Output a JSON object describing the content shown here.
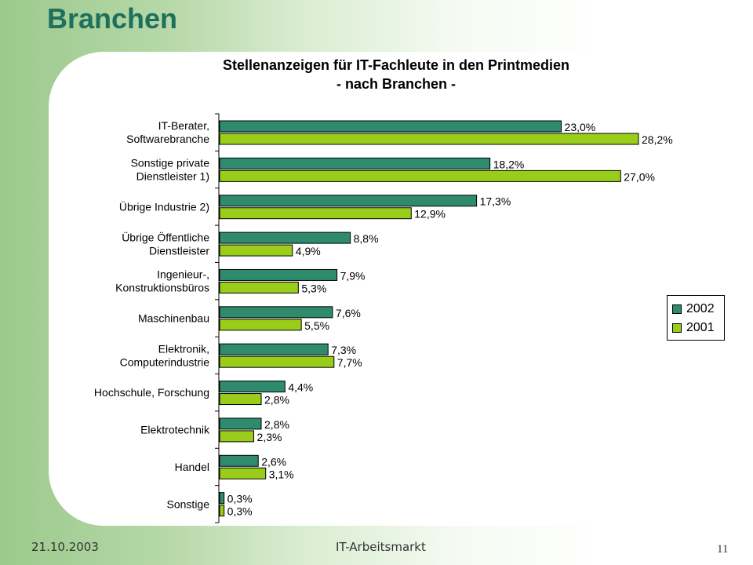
{
  "slide": {
    "title": "Branchen",
    "footer_date": "21.10.2003",
    "footer_center": "IT-Arbeitsmarkt",
    "page_number": "11"
  },
  "colors": {
    "series_2002": "#2e8b6e",
    "series_2001": "#9acd1a",
    "slide_title": "#1e6f5c"
  },
  "chart_data": {
    "type": "bar",
    "orientation": "horizontal",
    "title_lines": [
      "Stellenanzeigen für IT-Fachleute in den Printmedien",
      "- nach Branchen -"
    ],
    "categories": [
      [
        "IT-Berater,",
        "Softwarebranche"
      ],
      [
        "Sonstige private",
        "Dienstleister 1)"
      ],
      [
        "Übrige Industrie 2)"
      ],
      [
        "Übrige Öffentliche",
        "Dienstleister"
      ],
      [
        "Ingenieur-,",
        "Konstruktionsbüros"
      ],
      [
        "Maschinenbau"
      ],
      [
        "Elektronik,",
        "Computerindustrie"
      ],
      [
        "Hochschule, Forschung"
      ],
      [
        "Elektrotechnik"
      ],
      [
        "Handel"
      ],
      [
        "Sonstige"
      ]
    ],
    "series": [
      {
        "name": "2002",
        "values": [
          23.0,
          18.2,
          17.3,
          8.8,
          7.9,
          7.6,
          7.3,
          4.4,
          2.8,
          2.6,
          0.3
        ],
        "labels": [
          "23,0%",
          "18,2%",
          "17,3%",
          "8,8%",
          "7,9%",
          "7,6%",
          "7,3%",
          "4,4%",
          "2,8%",
          "2,6%",
          "0,3%"
        ]
      },
      {
        "name": "2001",
        "values": [
          28.2,
          27.0,
          12.9,
          4.9,
          5.3,
          5.5,
          7.7,
          2.8,
          2.3,
          3.1,
          0.3
        ],
        "labels": [
          "28,2%",
          "27,0%",
          "12,9%",
          "4,9%",
          "5,3%",
          "5,5%",
          "7,7%",
          "2,8%",
          "2,3%",
          "3,1%",
          "0,3%"
        ]
      }
    ],
    "xlim": [
      0,
      28.2
    ],
    "grid": false,
    "legend_position": "right"
  }
}
